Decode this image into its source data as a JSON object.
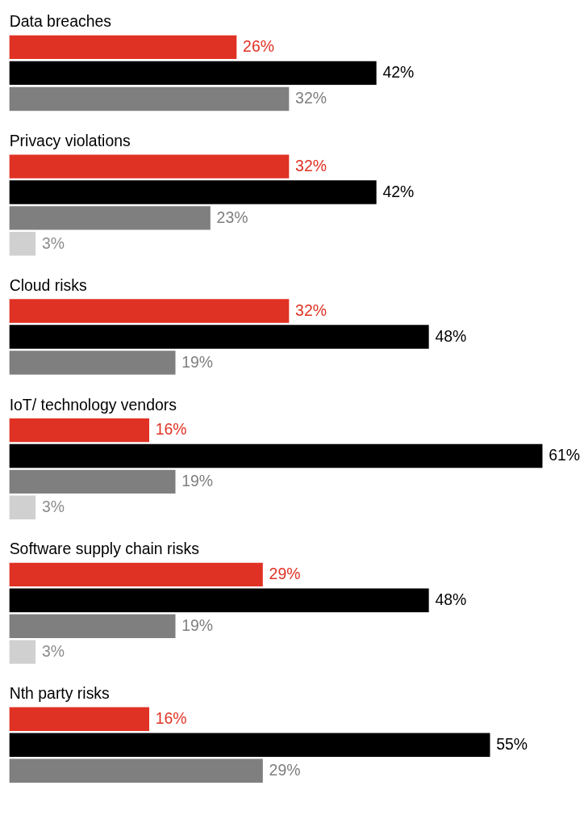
{
  "chart_data": [
    {
      "type": "bar",
      "orientation": "horizontal",
      "title": "Data breaches",
      "categories": [
        null,
        null,
        null
      ],
      "values": [
        26,
        42,
        32
      ],
      "colors": [
        "#e03224",
        "#000000",
        "#7f7f7f"
      ],
      "value_labels": [
        "26%",
        "42%",
        "32%"
      ]
    },
    {
      "type": "bar",
      "orientation": "horizontal",
      "title": "Privacy violations",
      "categories": [
        null,
        null,
        null,
        null
      ],
      "values": [
        32,
        42,
        23,
        3
      ],
      "colors": [
        "#e03224",
        "#000000",
        "#7f7f7f",
        "#d0d0d0"
      ],
      "value_labels": [
        "32%",
        "42%",
        "23%",
        "3%"
      ]
    },
    {
      "type": "bar",
      "orientation": "horizontal",
      "title": "Cloud risks",
      "categories": [
        null,
        null,
        null
      ],
      "values": [
        32,
        48,
        19
      ],
      "colors": [
        "#e03224",
        "#000000",
        "#7f7f7f"
      ],
      "value_labels": [
        "32%",
        "48%",
        "19%"
      ]
    },
    {
      "type": "bar",
      "orientation": "horizontal",
      "title": "IoT/ technology vendors",
      "categories": [
        null,
        null,
        null,
        null
      ],
      "values": [
        16,
        61,
        19,
        3
      ],
      "colors": [
        "#e03224",
        "#000000",
        "#7f7f7f",
        "#d0d0d0"
      ],
      "value_labels": [
        "16%",
        "61%",
        "19%",
        "3%"
      ]
    },
    {
      "type": "bar",
      "orientation": "horizontal",
      "title": "Software supply chain risks",
      "categories": [
        null,
        null,
        null,
        null
      ],
      "values": [
        29,
        48,
        19,
        3
      ],
      "colors": [
        "#e03224",
        "#000000",
        "#7f7f7f",
        "#d0d0d0"
      ],
      "value_labels": [
        "29%",
        "48%",
        "19%",
        "3%"
      ]
    },
    {
      "type": "bar",
      "orientation": "horizontal",
      "title": "Nth party risks",
      "categories": [
        null,
        null,
        null
      ],
      "values": [
        16,
        55,
        29
      ],
      "colors": [
        "#e03224",
        "#000000",
        "#7f7f7f"
      ],
      "value_labels": [
        "16%",
        "55%",
        "29%"
      ]
    }
  ]
}
